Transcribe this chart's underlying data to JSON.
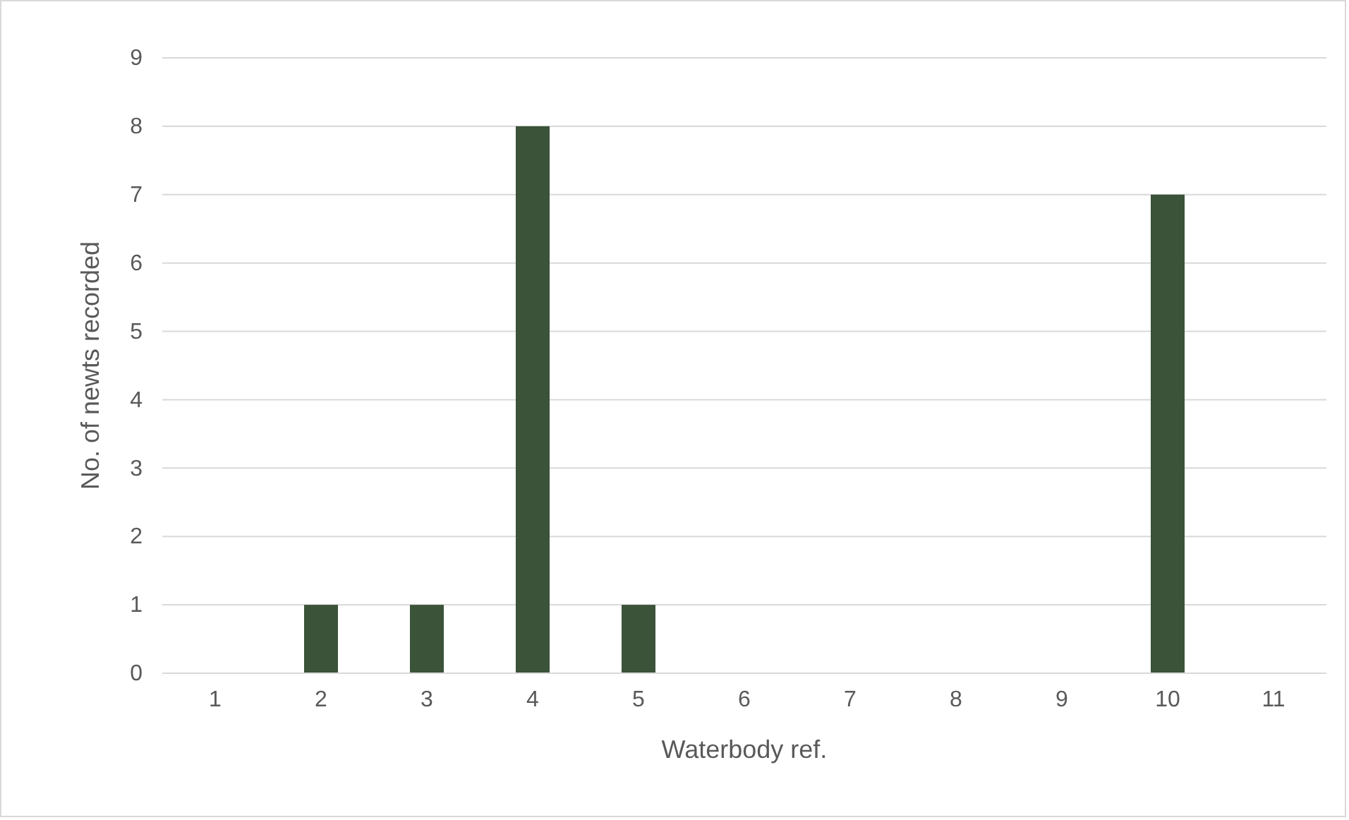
{
  "chart_data": {
    "type": "bar",
    "xlabel": "Waterbody ref.",
    "ylabel": "No. of newts recorded",
    "categories": [
      "1",
      "2",
      "3",
      "4",
      "5",
      "6",
      "7",
      "8",
      "9",
      "10",
      "11"
    ],
    "values": [
      0,
      1,
      1,
      8,
      1,
      0,
      0,
      0,
      0,
      7,
      0
    ],
    "color": "#3b5339",
    "ylim": [
      0,
      9
    ],
    "yticks": [
      0,
      1,
      2,
      3,
      4,
      5,
      6,
      7,
      8,
      9
    ],
    "grid": "y"
  }
}
